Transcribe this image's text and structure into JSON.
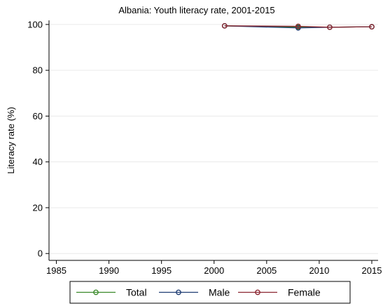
{
  "chart_data": {
    "type": "line",
    "title": "Albania: Youth literacy rate, 2001-2015",
    "xlabel": "",
    "ylabel": "Literacy rate (%)",
    "xlim": [
      1984.3,
      2015.6
    ],
    "ylim": [
      -3,
      101.8
    ],
    "x_ticks": [
      1985,
      1990,
      1995,
      2000,
      2005,
      2010,
      2015
    ],
    "y_ticks": [
      0,
      20,
      40,
      60,
      80,
      100
    ],
    "grid": true,
    "legend_position": "bottom",
    "series": [
      {
        "name": "Total",
        "color": "#3a8a2a",
        "x": [
          2001,
          2008,
          2011,
          2015
        ],
        "y": [
          99.4,
          98.8,
          98.8,
          99.0
        ]
      },
      {
        "name": "Male",
        "color": "#1f3d73",
        "x": [
          2001,
          2008,
          2011,
          2015
        ],
        "y": [
          99.4,
          98.5,
          98.8,
          99.0
        ]
      },
      {
        "name": "Female",
        "color": "#8b2530",
        "x": [
          2001,
          2008,
          2011,
          2015
        ],
        "y": [
          99.4,
          99.2,
          98.8,
          99.0
        ]
      }
    ]
  }
}
